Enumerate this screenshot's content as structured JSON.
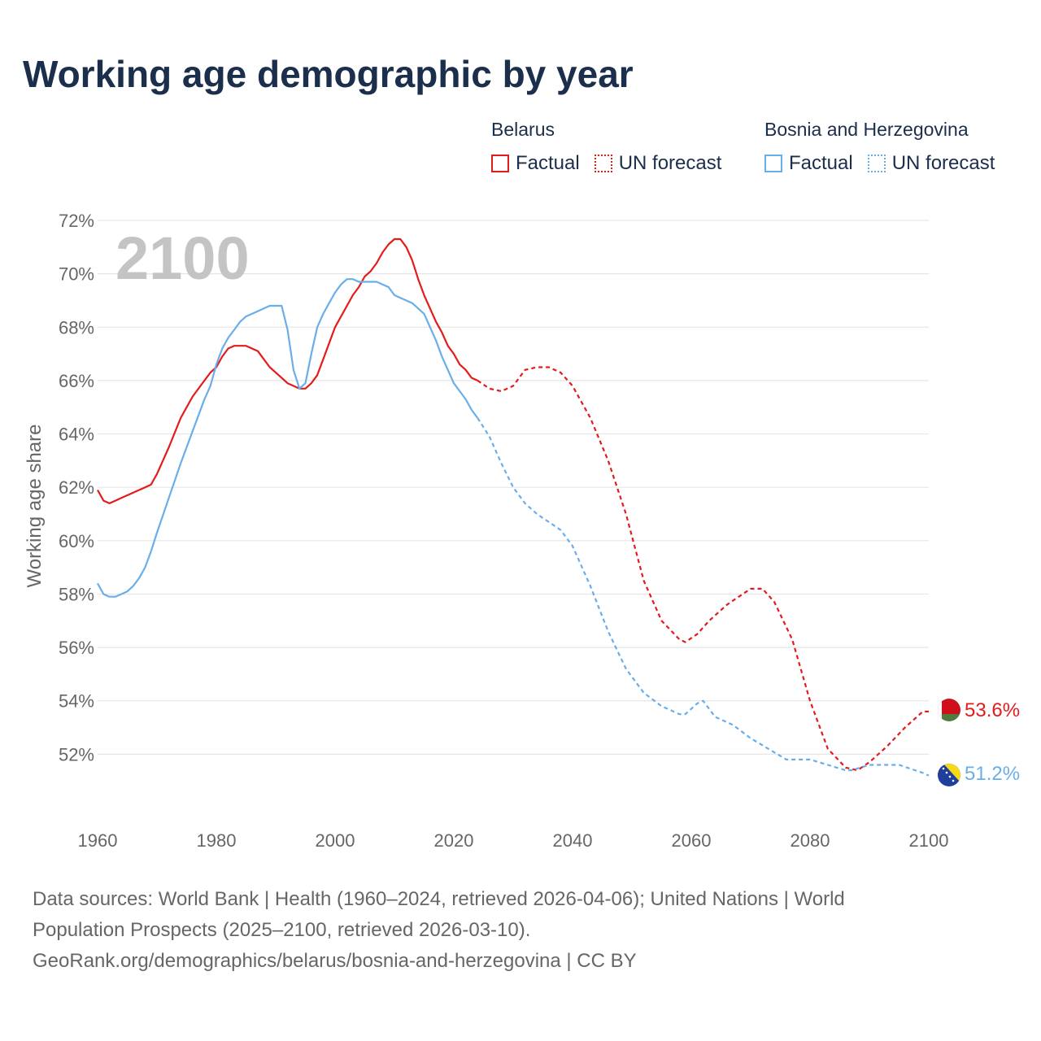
{
  "title": "Working age demographic by year",
  "legend": {
    "groups": [
      {
        "name": "Belarus",
        "factual_label": "Factual",
        "forecast_label": "UN forecast"
      },
      {
        "name": "Bosnia and Herzegovina",
        "factual_label": "Factual",
        "forecast_label": "UN forecast"
      }
    ]
  },
  "footer": {
    "line1": "Data sources: World Bank | Health (1960–2024, retrieved 2026-04-06); United Nations | World",
    "line2": "Population Prospects (2025–2100, retrieved 2026-03-10).",
    "line3": "GeoRank.org/demographics/belarus/bosnia-and-herzegovina | CC BY"
  },
  "colors": {
    "belarus": "#e31b1b",
    "bosnia": "#6aaee9",
    "grid": "#e6e6e6",
    "axis_text": "#666666",
    "year_label": "#c4c4c4"
  },
  "chart_data": {
    "type": "line",
    "title": "Working age demographic by year",
    "xlabel": "",
    "ylabel": "Working age share",
    "year_label": "2100",
    "xlim": [
      1960,
      2100
    ],
    "ylim": [
      50,
      72
    ],
    "x_ticks": [
      1960,
      1980,
      2000,
      2020,
      2040,
      2060,
      2080,
      2100
    ],
    "y_ticks": [
      52,
      54,
      56,
      58,
      60,
      62,
      64,
      66,
      68,
      70,
      72
    ],
    "y_tick_labels": [
      "52%",
      "54%",
      "56%",
      "58%",
      "60%",
      "62%",
      "64%",
      "66%",
      "68%",
      "70%",
      "72%"
    ],
    "series": [
      {
        "name": "Belarus",
        "end_label": "53.6%",
        "factual": {
          "x": [
            1960,
            1961,
            1962,
            1963,
            1964,
            1965,
            1966,
            1967,
            1968,
            1969,
            1970,
            1972,
            1974,
            1976,
            1978,
            1979,
            1980,
            1981,
            1982,
            1983,
            1984,
            1985,
            1986,
            1987,
            1988,
            1989,
            1990,
            1991,
            1992,
            1993,
            1994,
            1995,
            1996,
            1997,
            1998,
            1999,
            2000,
            2001,
            2002,
            2003,
            2004,
            2005,
            2006,
            2007,
            2008,
            2009,
            2010,
            2011,
            2012,
            2013,
            2014,
            2015,
            2016,
            2017,
            2018,
            2019,
            2020,
            2021,
            2022,
            2023,
            2024
          ],
          "y": [
            61.9,
            61.5,
            61.4,
            61.5,
            61.6,
            61.7,
            61.8,
            61.9,
            62.0,
            62.1,
            62.5,
            63.5,
            64.6,
            65.4,
            66.0,
            66.3,
            66.5,
            66.9,
            67.2,
            67.3,
            67.3,
            67.3,
            67.2,
            67.1,
            66.8,
            66.5,
            66.3,
            66.1,
            65.9,
            65.8,
            65.7,
            65.7,
            65.9,
            66.2,
            66.8,
            67.4,
            68.0,
            68.4,
            68.8,
            69.2,
            69.5,
            69.9,
            70.1,
            70.4,
            70.8,
            71.1,
            71.3,
            71.3,
            71.0,
            70.5,
            69.8,
            69.2,
            68.7,
            68.2,
            67.8,
            67.3,
            67.0,
            66.6,
            66.4,
            66.1,
            66.0
          ]
        },
        "forecast": {
          "x": [
            2024,
            2026,
            2028,
            2030,
            2032,
            2034,
            2036,
            2038,
            2040,
            2043,
            2046,
            2049,
            2052,
            2055,
            2058,
            2059,
            2061,
            2063,
            2066,
            2068,
            2070,
            2072,
            2074,
            2077,
            2080,
            2083,
            2086,
            2088,
            2090,
            2093,
            2096,
            2099,
            2100
          ],
          "y": [
            66.0,
            65.7,
            65.6,
            65.8,
            66.4,
            66.5,
            66.5,
            66.3,
            65.8,
            64.6,
            63.0,
            61.0,
            58.5,
            57.0,
            56.3,
            56.2,
            56.5,
            57.0,
            57.6,
            57.9,
            58.2,
            58.2,
            57.7,
            56.3,
            54.0,
            52.2,
            51.5,
            51.4,
            51.7,
            52.3,
            53.0,
            53.6,
            53.6
          ]
        }
      },
      {
        "name": "Bosnia and Herzegovina",
        "end_label": "51.2%",
        "factual": {
          "x": [
            1960,
            1961,
            1962,
            1963,
            1964,
            1965,
            1966,
            1967,
            1968,
            1969,
            1970,
            1972,
            1974,
            1976,
            1978,
            1979,
            1980,
            1981,
            1982,
            1983,
            1984,
            1985,
            1986,
            1987,
            1988,
            1989,
            1990,
            1991,
            1992,
            1993,
            1994,
            1995,
            1996,
            1997,
            1998,
            1999,
            2000,
            2001,
            2002,
            2003,
            2004,
            2005,
            2006,
            2007,
            2008,
            2009,
            2010,
            2011,
            2012,
            2013,
            2014,
            2015,
            2016,
            2017,
            2018,
            2019,
            2020,
            2021,
            2022,
            2023,
            2024
          ],
          "y": [
            58.4,
            58.0,
            57.9,
            57.9,
            58.0,
            58.1,
            58.3,
            58.6,
            59.0,
            59.6,
            60.3,
            61.6,
            62.9,
            64.1,
            65.3,
            65.8,
            66.6,
            67.2,
            67.6,
            67.9,
            68.2,
            68.4,
            68.5,
            68.6,
            68.7,
            68.8,
            68.8,
            68.8,
            67.9,
            66.4,
            65.7,
            65.9,
            67.0,
            68.0,
            68.5,
            68.9,
            69.3,
            69.6,
            69.8,
            69.8,
            69.7,
            69.7,
            69.7,
            69.7,
            69.6,
            69.5,
            69.2,
            69.1,
            69.0,
            68.9,
            68.7,
            68.5,
            68.0,
            67.5,
            66.9,
            66.4,
            65.9,
            65.6,
            65.3,
            64.9,
            64.6
          ]
        },
        "forecast": {
          "x": [
            2024,
            2026,
            2028,
            2030,
            2032,
            2034,
            2036,
            2038,
            2040,
            2043,
            2046,
            2049,
            2052,
            2055,
            2058,
            2059,
            2061,
            2062,
            2064,
            2067,
            2070,
            2073,
            2076,
            2080,
            2083,
            2086,
            2087,
            2090,
            2095,
            2099,
            2100
          ],
          "y": [
            64.6,
            63.9,
            62.9,
            62.0,
            61.4,
            61.0,
            60.7,
            60.4,
            59.8,
            58.3,
            56.6,
            55.2,
            54.3,
            53.8,
            53.5,
            53.5,
            53.9,
            54.0,
            53.4,
            53.1,
            52.6,
            52.2,
            51.8,
            51.8,
            51.6,
            51.4,
            51.4,
            51.6,
            51.6,
            51.3,
            51.2
          ]
        }
      }
    ]
  }
}
